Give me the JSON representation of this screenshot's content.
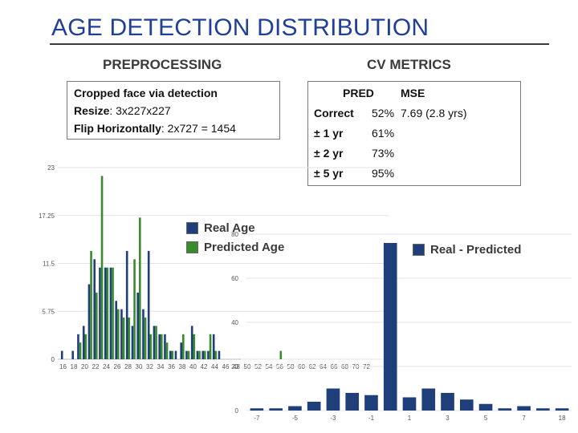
{
  "slide": {
    "title": "AGE DETECTION DISTRIBUTION",
    "preprocessing": {
      "heading": "PREPROCESSING",
      "line1": "Cropped face via detection",
      "line2_label": "Resize",
      "line2_value": ": 3x227x227",
      "line3_label": "Flip Horizontally",
      "line3_value": ": 2x727 = 1454"
    },
    "cv_metrics": {
      "heading": "CV METRICS",
      "col1": "PRED",
      "col2": "MSE",
      "rows": [
        {
          "label": "Correct",
          "pred": "52%",
          "mse": "7.69 (2.8 yrs)"
        },
        {
          "label": "± 1 yr",
          "pred": "61%",
          "mse": ""
        },
        {
          "label": "± 2 yr",
          "pred": "73%",
          "mse": ""
        },
        {
          "label": "± 5 yr",
          "pred": "95%",
          "mse": ""
        }
      ]
    }
  },
  "colors": {
    "title": "#1f3f99",
    "real": "#1f3f7a",
    "predicted": "#3a8a2e",
    "grid": "#e3e3e3"
  },
  "chart_data": [
    {
      "type": "bar",
      "title": "",
      "xlabel": "",
      "ylabel": "",
      "ylim": [
        0,
        23
      ],
      "yticks": [
        "0",
        "5.75",
        "11.5",
        "17.25",
        "23"
      ],
      "categories": [
        16,
        17,
        18,
        19,
        20,
        21,
        22,
        23,
        24,
        25,
        26,
        27,
        28,
        29,
        30,
        31,
        32,
        33,
        34,
        35,
        36,
        37,
        38,
        39,
        40,
        41,
        42,
        43,
        44,
        45,
        46,
        47,
        48,
        49,
        50,
        51,
        52,
        53,
        54,
        55,
        56,
        57,
        58,
        59,
        60,
        61,
        62,
        63,
        64,
        65,
        66,
        67,
        68,
        69,
        70,
        71,
        72
      ],
      "xtick_labels": [
        "16",
        "18",
        "20",
        "22",
        "24",
        "26",
        "28",
        "30",
        "32",
        "34",
        "36",
        "38",
        "40",
        "42",
        "44",
        "46",
        "48",
        "50",
        "52",
        "54",
        "56",
        "58",
        "60",
        "62",
        "64",
        "66",
        "68",
        "70",
        "72"
      ],
      "series": [
        {
          "name": "Real Age",
          "color": "#1f3f7a",
          "values": [
            1,
            0,
            1,
            3,
            4,
            9,
            12,
            11,
            11,
            11,
            7,
            6,
            13,
            4,
            8,
            6,
            13,
            4,
            3,
            3,
            1,
            1,
            2,
            1,
            4,
            1,
            1,
            1,
            3,
            1,
            0,
            0,
            0,
            0,
            0,
            0,
            0,
            0,
            0,
            0,
            0,
            0,
            0,
            0,
            0,
            0,
            0,
            0,
            0,
            0,
            0,
            0,
            0,
            0,
            0,
            0,
            0
          ]
        },
        {
          "name": "Predicted Age",
          "color": "#3a8a2e",
          "values": [
            0,
            0,
            0,
            2,
            3,
            13,
            8,
            22,
            11,
            11,
            6,
            5,
            5,
            12,
            17,
            5,
            3,
            4,
            3,
            2,
            1,
            0,
            3,
            1,
            3,
            1,
            1,
            3,
            1,
            0,
            0,
            0,
            0,
            0,
            0,
            0,
            0,
            0,
            0,
            0,
            1,
            0,
            0,
            0,
            0,
            0,
            0,
            0,
            0,
            0,
            0,
            0,
            0,
            0,
            0,
            0,
            0
          ]
        }
      ],
      "legend": "right"
    },
    {
      "type": "bar",
      "title": "",
      "xlabel": "",
      "ylabel": "",
      "ylim": [
        0,
        80
      ],
      "yticks": [
        "0",
        "20",
        "40",
        "60",
        "80"
      ],
      "categories": [
        -7,
        -6,
        -5,
        -4,
        -3,
        -2,
        -1,
        0,
        1,
        2,
        3,
        4,
        5,
        6,
        7,
        8,
        18
      ],
      "xtick_labels": [
        "-7",
        "-5",
        "-3",
        "-1",
        "1",
        "3",
        "5",
        "7",
        "18"
      ],
      "series": [
        {
          "name": "Real - Predicted",
          "color": "#1f3f7a",
          "values": [
            1,
            1,
            2,
            4,
            10,
            8,
            7,
            76,
            6,
            10,
            8,
            5,
            3,
            1,
            2,
            1,
            1
          ]
        }
      ],
      "legend": "top-left"
    }
  ]
}
